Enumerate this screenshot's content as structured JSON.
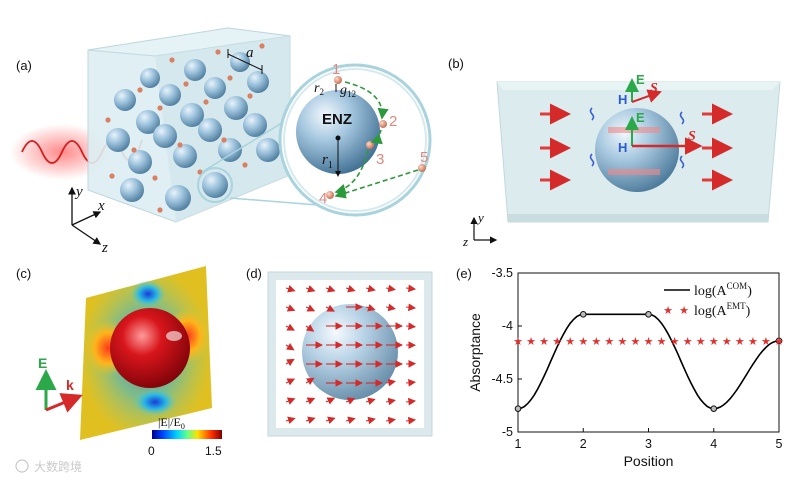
{
  "panels": {
    "a": {
      "tag": "(a)",
      "lattice_constant": "a",
      "enz_label": "ENZ",
      "r1": "r",
      "r1_sub": "1",
      "r2": "r",
      "r2_sub": "2",
      "g12": "g",
      "g12_sub": "12",
      "positions": [
        "1",
        "2",
        "3",
        "4",
        "5"
      ],
      "axes": {
        "x": "x",
        "y": "y",
        "z": "z"
      }
    },
    "b": {
      "tag": "(b)",
      "E": "E",
      "H": "H",
      "S": "S",
      "axes": {
        "y": "y",
        "z": "z"
      }
    },
    "c": {
      "tag": "(c)",
      "E": "E",
      "k": "k",
      "colorbar_label": "|E|/E",
      "colorbar_label_sub": "0",
      "colorbar_min": "0",
      "colorbar_max": "1.5"
    },
    "d": {
      "tag": "(d)"
    },
    "e": {
      "tag": "(e)"
    }
  },
  "watermark": "大数跨境",
  "chart_data": {
    "type": "line",
    "title": "",
    "xlabel": "Position",
    "ylabel": "Absorptance",
    "xlim": [
      1,
      5
    ],
    "ylim": [
      -5,
      -3.5
    ],
    "xticks": [
      "1",
      "2",
      "3",
      "4",
      "5"
    ],
    "yticks": [
      "-3.5",
      "-4",
      "-4.5",
      "-5"
    ],
    "legend_position": "top-right",
    "series": [
      {
        "name": "log(A^COM)",
        "legend_main": "log(A",
        "legend_sup": "COM",
        "style": "line",
        "color": "#000000",
        "x": [
          1,
          2,
          3,
          4,
          5
        ],
        "y": [
          -4.78,
          -3.89,
          -3.89,
          -4.78,
          -4.14
        ]
      },
      {
        "name": "log(A^EMT)",
        "legend_main": "log(A",
        "legend_sup": "EMT",
        "style": "stars",
        "color": "#e03030",
        "x": [
          1,
          1.2,
          1.4,
          1.6,
          1.8,
          2,
          2.2,
          2.4,
          2.6,
          2.8,
          3,
          3.2,
          3.4,
          3.6,
          3.8,
          4,
          4.2,
          4.4,
          4.6,
          4.8,
          5
        ],
        "y": [
          -4.14,
          -4.14,
          -4.14,
          -4.14,
          -4.14,
          -4.14,
          -4.14,
          -4.14,
          -4.14,
          -4.14,
          -4.14,
          -4.14,
          -4.14,
          -4.14,
          -4.14,
          -4.14,
          -4.14,
          -4.14,
          -4.14,
          -4.14,
          -4.14
        ]
      }
    ]
  }
}
